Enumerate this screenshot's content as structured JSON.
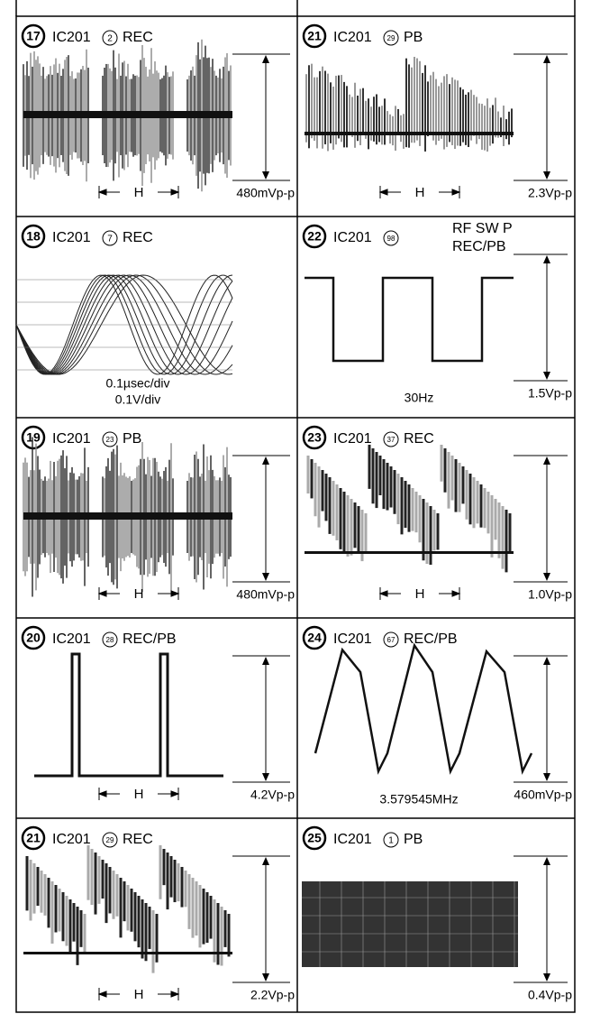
{
  "cells": [
    {
      "badge": "17",
      "ic": "IC201",
      "pin": "2",
      "mode": "REC",
      "amplitude": "480mVp-p",
      "marker": "H"
    },
    {
      "badge": "21",
      "ic": "IC201",
      "pin": "29",
      "mode": "PB",
      "amplitude": "2.3Vp-p",
      "marker": "H"
    },
    {
      "badge": "18",
      "ic": "IC201",
      "pin": "7",
      "mode": "REC",
      "notes": [
        "0.1µsec/div",
        "0.1V/div"
      ]
    },
    {
      "badge": "22",
      "ic": "IC201",
      "pin": "98",
      "side": [
        "RF SW P",
        "REC/PB"
      ],
      "amplitude": "1.5Vp-p",
      "notes": [
        "30Hz"
      ]
    },
    {
      "badge": "19",
      "ic": "IC201",
      "pin": "23",
      "mode": "PB",
      "amplitude": "480mVp-p",
      "marker": "H"
    },
    {
      "badge": "23",
      "ic": "IC201",
      "pin": "37",
      "mode": "REC",
      "amplitude": "1.0Vp-p",
      "marker": "H"
    },
    {
      "badge": "20",
      "ic": "IC201",
      "pin": "28",
      "mode": "REC/PB",
      "amplitude": "4.2Vp-p",
      "marker": "H"
    },
    {
      "badge": "24",
      "ic": "IC201",
      "pin": "67",
      "mode": "REC/PB",
      "amplitude": "460mVp-p",
      "notes": [
        "3.579545MHz"
      ]
    },
    {
      "badge": "21",
      "ic": "IC201",
      "pin": "29",
      "mode": "REC",
      "amplitude": "2.2Vp-p",
      "marker": "H"
    },
    {
      "badge": "25",
      "ic": "IC201",
      "pin": "1",
      "mode": "PB",
      "amplitude": "0.4Vp-p"
    }
  ]
}
